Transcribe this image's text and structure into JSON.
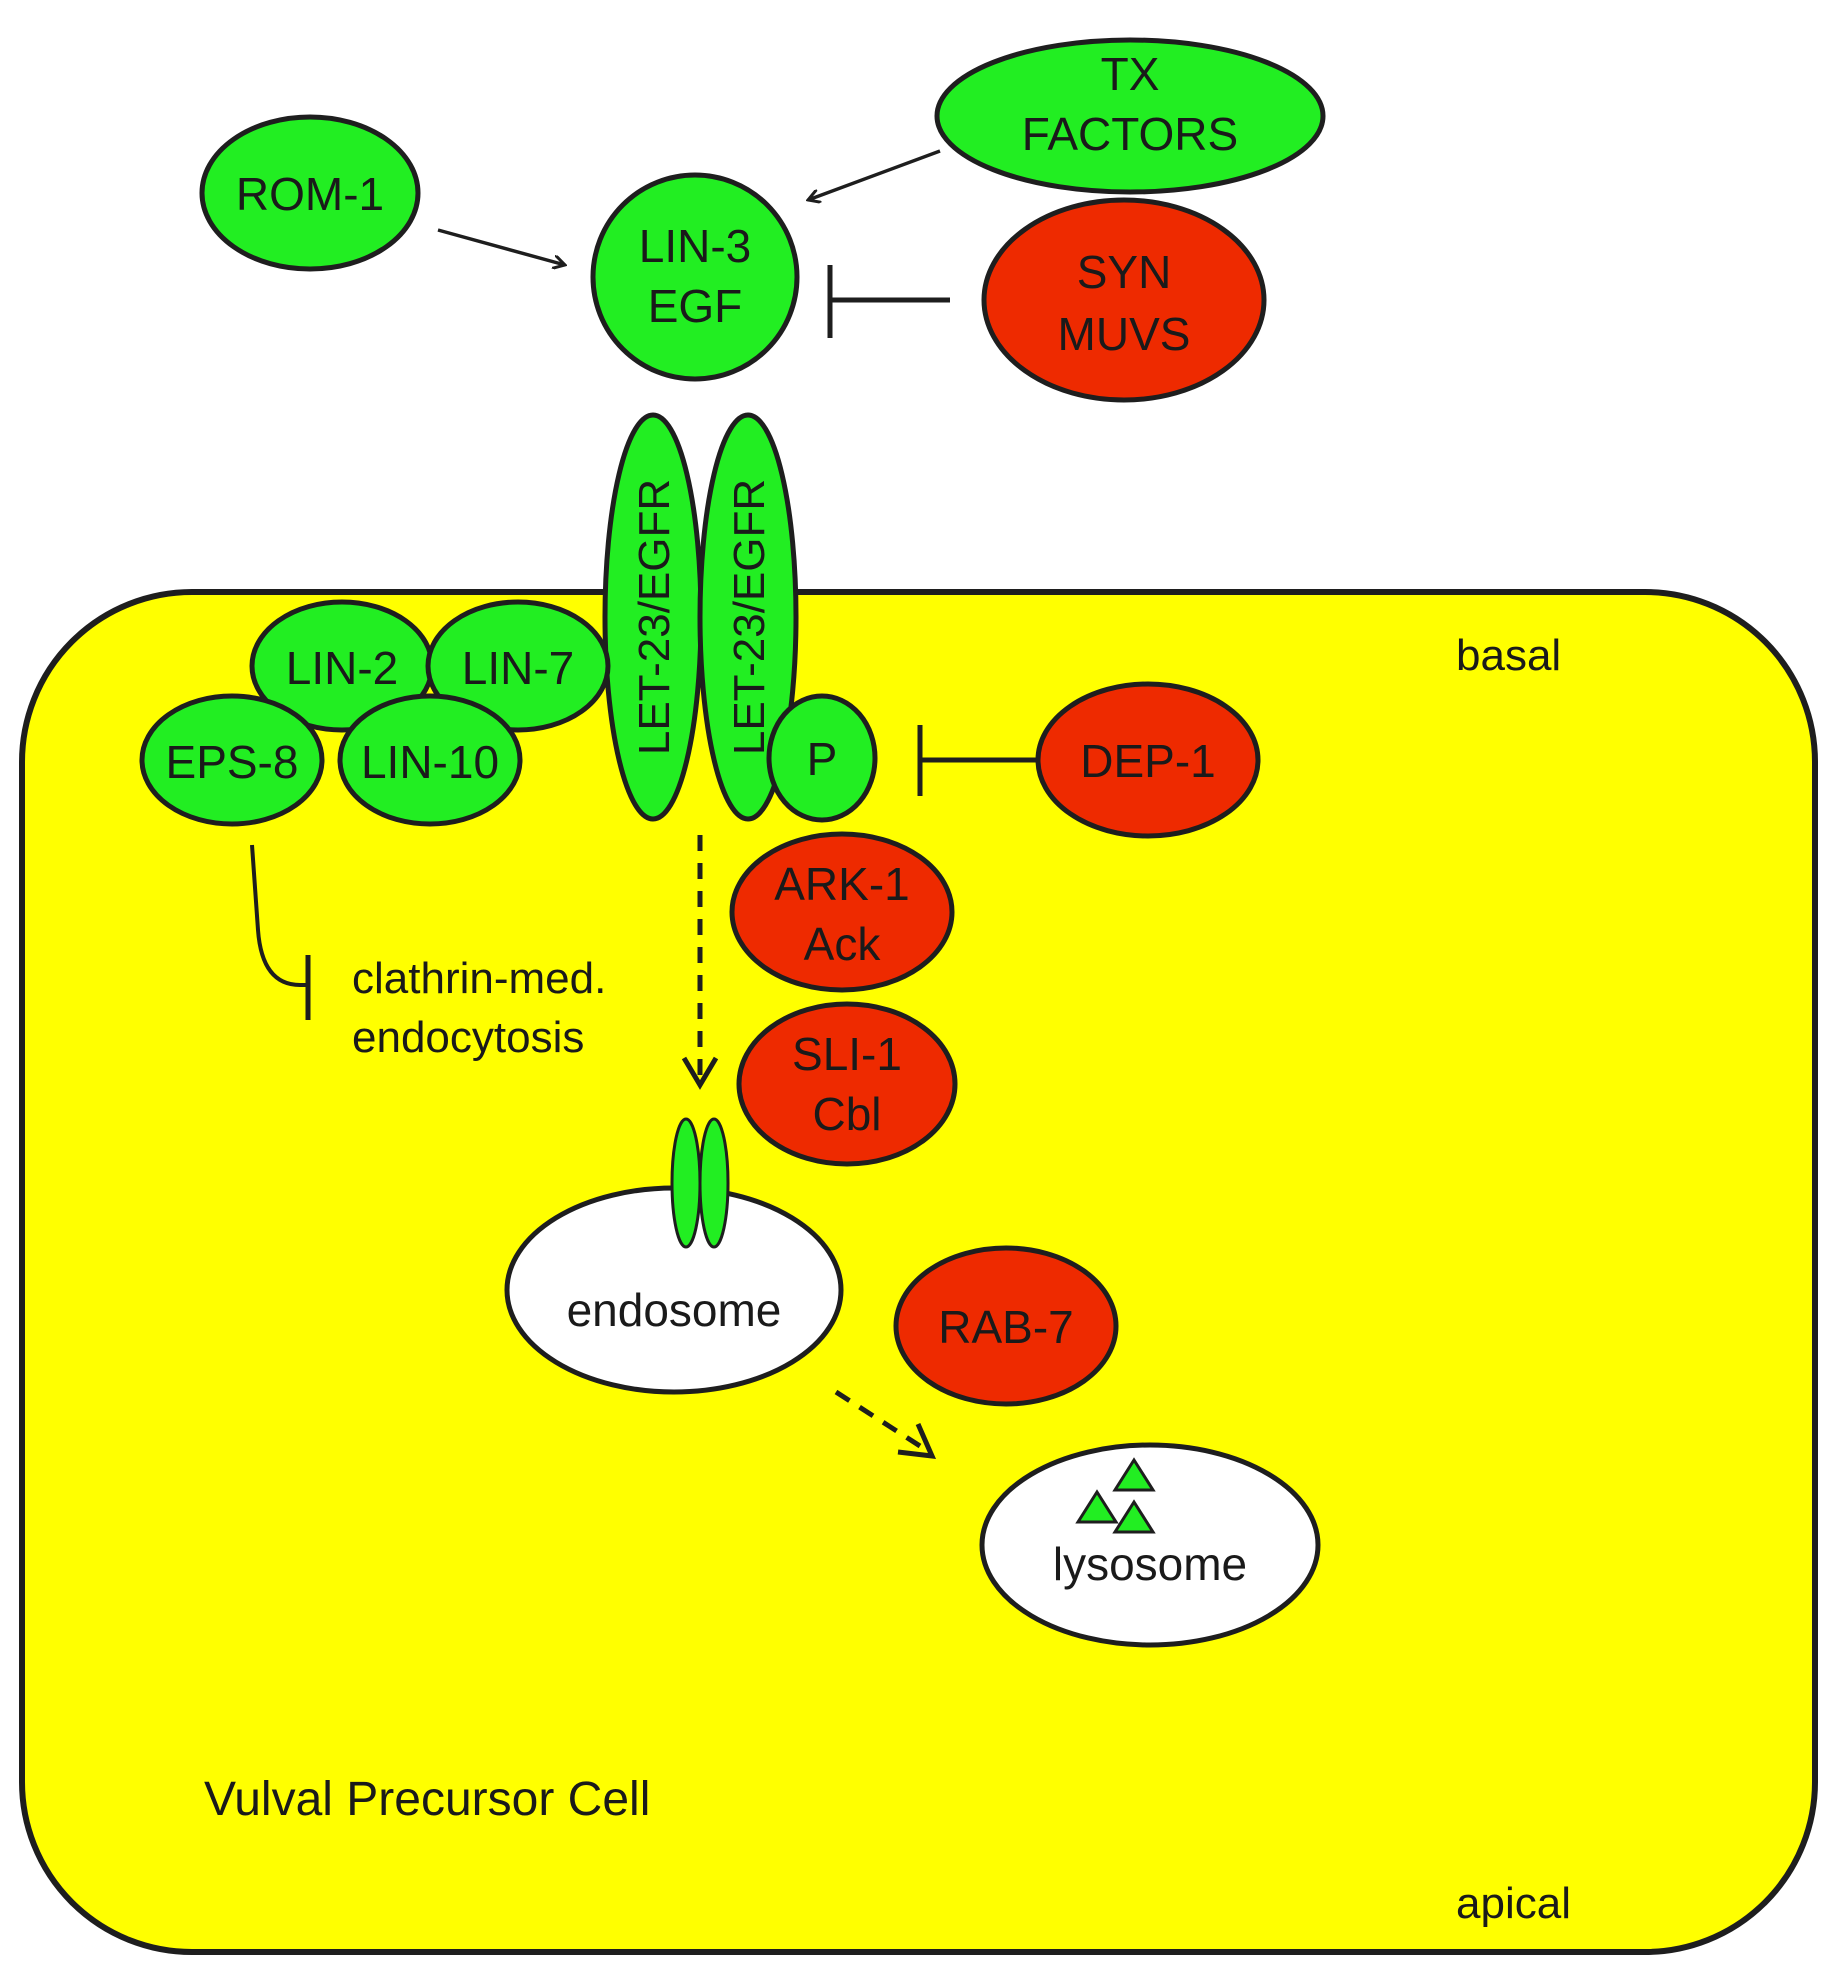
{
  "colors": {
    "activator": "#22ee22",
    "inhibitor": "#ee2a00",
    "cell": "#ffff00",
    "organelle": "#ffffff",
    "outline": "#1e1e1e"
  },
  "cell": {
    "label": "Vulval Precursor Cell",
    "basal": "basal",
    "apical": "apical"
  },
  "nodes": {
    "tx_factors": [
      "TX",
      "FACTORS"
    ],
    "rom1": "ROM-1",
    "lin3": [
      "LIN-3",
      "EGF"
    ],
    "synmuvs": [
      "SYN",
      "MUVS"
    ],
    "let23_left": "LET-23/EGFR",
    "let23_right": "LET-23/EGFR",
    "lin2": "LIN-2",
    "lin7": "LIN-7",
    "eps8": "EPS-8",
    "lin10": "LIN-10",
    "phospho": "P",
    "dep1": "DEP-1",
    "ark1": [
      "ARK-1",
      "Ack"
    ],
    "sli1": [
      "SLI-1",
      "Cbl"
    ],
    "rab7": "RAB-7",
    "endosome": "endosome",
    "lysosome": "lysosome",
    "endocytosis": [
      "clathrin-med.",
      "endocytosis"
    ]
  }
}
